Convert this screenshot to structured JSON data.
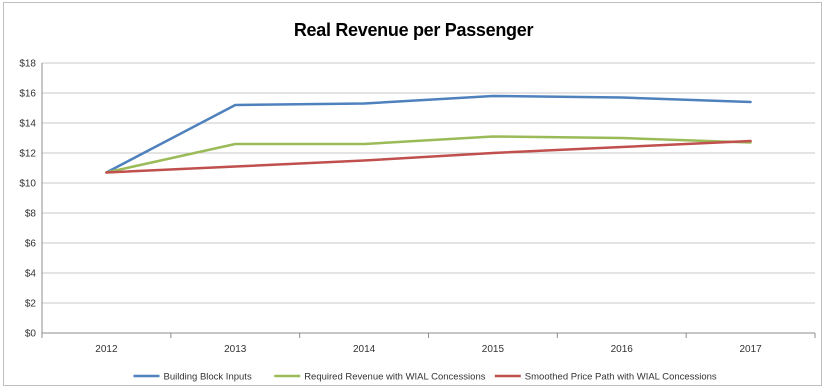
{
  "chart_data": {
    "type": "line",
    "title": "Real Revenue per Passenger",
    "xlabel": "",
    "ylabel": "",
    "categories": [
      "2012",
      "2013",
      "2014",
      "2015",
      "2016",
      "2017"
    ],
    "yticks": [
      "$0",
      "$2",
      "$4",
      "$6",
      "$8",
      "$10",
      "$12",
      "$14",
      "$16",
      "$18"
    ],
    "ylim": [
      0,
      18
    ],
    "grid": true,
    "legend_position": "bottom",
    "series": [
      {
        "name": "Building Block Inputs",
        "color": "#4f81bd",
        "values": [
          10.7,
          15.2,
          15.3,
          15.8,
          15.7,
          15.4
        ]
      },
      {
        "name": "Required Revenue with WIAL Concessions",
        "color": "#9bbb59",
        "values": [
          10.7,
          12.6,
          12.6,
          13.1,
          13.0,
          12.7
        ]
      },
      {
        "name": "Smoothed Price Path with WIAL Concessions",
        "color": "#c0504d",
        "values": [
          10.7,
          11.1,
          11.5,
          12.0,
          12.4,
          12.8
        ]
      }
    ]
  }
}
